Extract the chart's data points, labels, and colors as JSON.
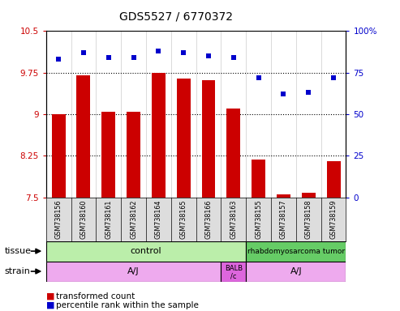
{
  "title": "GDS5527 / 6770372",
  "samples": [
    "GSM738156",
    "GSM738160",
    "GSM738161",
    "GSM738162",
    "GSM738164",
    "GSM738165",
    "GSM738166",
    "GSM738163",
    "GSM738155",
    "GSM738157",
    "GSM738158",
    "GSM738159"
  ],
  "bar_values": [
    9.0,
    9.7,
    9.05,
    9.05,
    9.75,
    9.65,
    9.62,
    9.1,
    8.18,
    7.55,
    7.58,
    8.15
  ],
  "dot_values": [
    83,
    87,
    84,
    84,
    88,
    87,
    85,
    84,
    72,
    62,
    63,
    72
  ],
  "bar_color": "#cc0000",
  "dot_color": "#0000cc",
  "ylim_left": [
    7.5,
    10.5
  ],
  "ylim_right": [
    0,
    100
  ],
  "yticks_left": [
    7.5,
    8.25,
    9.0,
    9.75,
    10.5
  ],
  "yticks_right": [
    0,
    25,
    50,
    75,
    100
  ],
  "ytick_labels_left": [
    "7.5",
    "8.25",
    "9",
    "9.75",
    "10.5"
  ],
  "ytick_labels_right": [
    "0",
    "25",
    "50",
    "75",
    "100%"
  ],
  "hlines": [
    8.25,
    9.0,
    9.75
  ],
  "tissue_control_color": "#bbeeaa",
  "tissue_tumor_color": "#66cc66",
  "strain_aj_color": "#eeaaee",
  "strain_balb_color": "#dd66dd",
  "legend_items": [
    {
      "label": "transformed count",
      "color": "#cc0000"
    },
    {
      "label": "percentile rank within the sample",
      "color": "#0000cc"
    }
  ],
  "tissue_row_label": "tissue",
  "strain_row_label": "strain"
}
